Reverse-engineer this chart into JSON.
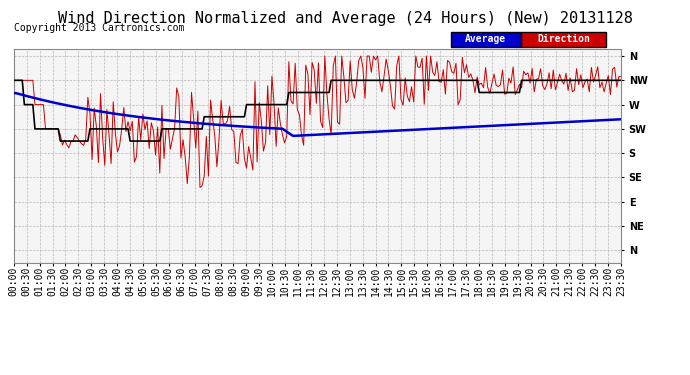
{
  "title": "Wind Direction Normalized and Average (24 Hours) (New) 20131128",
  "copyright": "Copyright 2013 Cartronics.com",
  "ytick_labels": [
    "N",
    "NW",
    "W",
    "SW",
    "S",
    "SE",
    "E",
    "NE",
    "N"
  ],
  "ytick_values": [
    0,
    1,
    2,
    3,
    4,
    5,
    6,
    7,
    8
  ],
  "ylim": [
    -0.3,
    8.5
  ],
  "bg_color": "#ffffff",
  "plot_bg_color": "#f5f5f5",
  "grid_color": "#aaaaaa",
  "red_color": "#cc0000",
  "blue_color": "#0000cc",
  "black_color": "#000000",
  "legend_avg_bg": "#0000cc",
  "legend_dir_bg": "#cc0000",
  "legend_avg_text": "Average",
  "legend_dir_text": "Direction",
  "title_fontsize": 11,
  "copyright_fontsize": 7,
  "tick_fontsize": 8,
  "n_points": 288,
  "xtick_labels": [
    "00:00",
    "00:30",
    "01:00",
    "01:30",
    "02:00",
    "02:30",
    "03:00",
    "03:30",
    "04:00",
    "04:30",
    "05:00",
    "05:30",
    "06:00",
    "06:30",
    "07:00",
    "07:30",
    "08:00",
    "08:30",
    "09:00",
    "09:30",
    "10:00",
    "10:30",
    "11:00",
    "11:30",
    "12:00",
    "12:30",
    "13:00",
    "13:30",
    "14:00",
    "14:30",
    "15:00",
    "15:30",
    "16:00",
    "16:30",
    "17:00",
    "17:30",
    "18:00",
    "18:30",
    "19:00",
    "19:30",
    "20:00",
    "20:30",
    "21:00",
    "21:30",
    "22:00",
    "22:30",
    "23:00",
    "23:30"
  ]
}
